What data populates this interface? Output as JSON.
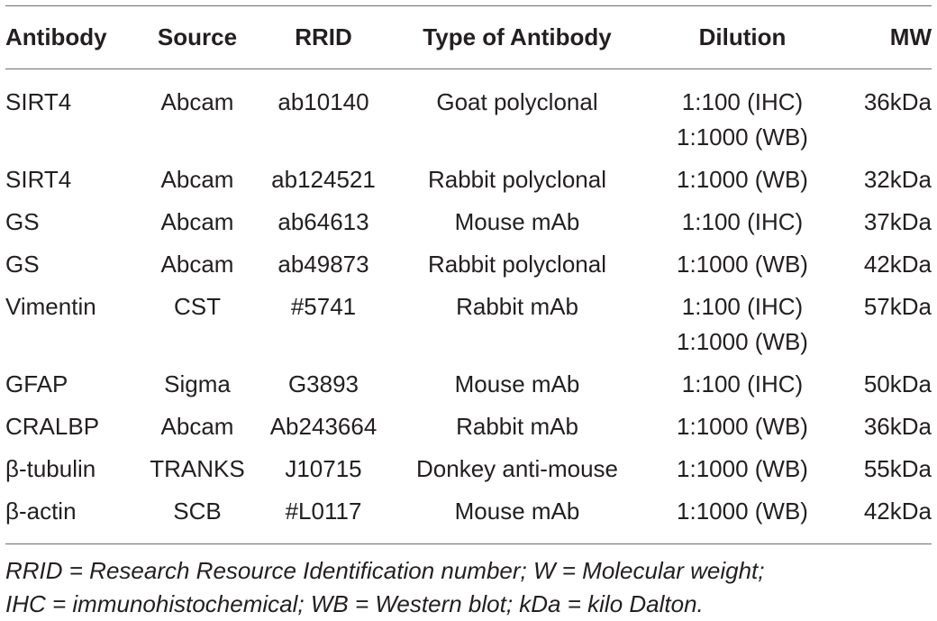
{
  "table": {
    "headers": [
      "Antibody",
      "Source",
      "RRID",
      "Type of Antibody",
      "Dilution",
      "MW"
    ],
    "rows": [
      {
        "antibody": "SIRT4",
        "source": "Abcam",
        "rrid": "ab10140",
        "type": "Goat polyclonal",
        "dilution": [
          "1:100 (IHC)",
          "1:1000 (WB)"
        ],
        "mw": "36kDa"
      },
      {
        "antibody": "SIRT4",
        "source": "Abcam",
        "rrid": "ab124521",
        "type": "Rabbit polyclonal",
        "dilution": [
          "1:1000 (WB)"
        ],
        "mw": "32kDa"
      },
      {
        "antibody": "GS",
        "source": "Abcam",
        "rrid": "ab64613",
        "type": "Mouse mAb",
        "dilution": [
          "1:100 (IHC)"
        ],
        "mw": "37kDa"
      },
      {
        "antibody": "GS",
        "source": "Abcam",
        "rrid": "ab49873",
        "type": "Rabbit polyclonal",
        "dilution": [
          "1:1000 (WB)"
        ],
        "mw": "42kDa"
      },
      {
        "antibody": "Vimentin",
        "source": "CST",
        "rrid": "#5741",
        "type": "Rabbit mAb",
        "dilution": [
          "1:100 (IHC)",
          "1:1000 (WB)"
        ],
        "mw": "57kDa"
      },
      {
        "antibody": "GFAP",
        "source": "Sigma",
        "rrid": "G3893",
        "type": "Mouse mAb",
        "dilution": [
          "1:100 (IHC)"
        ],
        "mw": "50kDa"
      },
      {
        "antibody": "CRALBP",
        "source": "Abcam",
        "rrid": "Ab243664",
        "type": "Rabbit mAb",
        "dilution": [
          "1:1000 (WB)"
        ],
        "mw": "36kDa"
      },
      {
        "antibody": "β-tubulin",
        "source": "TRANKS",
        "rrid": "J10715",
        "type": "Donkey anti-mouse",
        "dilution": [
          "1:1000 (WB)"
        ],
        "mw": "55kDa"
      },
      {
        "antibody": "β-actin",
        "source": "SCB",
        "rrid": "#L0117",
        "type": "Mouse mAb",
        "dilution": [
          "1:1000 (WB)"
        ],
        "mw": "42kDa"
      }
    ]
  },
  "footnote": {
    "line1": "RRID = Research Resource Identification number; W = Molecular weight;",
    "line2": "IHC = immunohistochemical; WB = Western blot; kDa = kilo Dalton."
  }
}
